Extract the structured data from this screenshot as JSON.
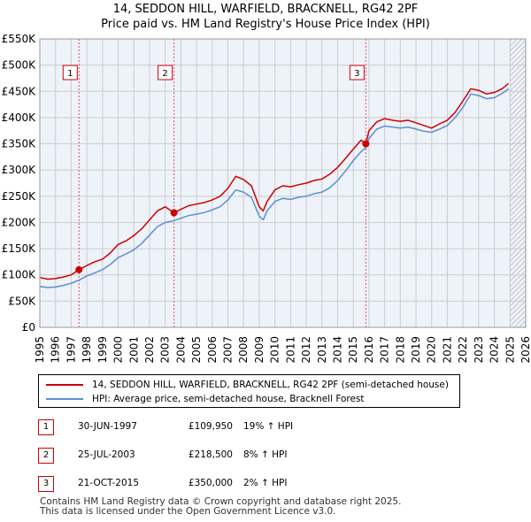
{
  "title_line1": "14, SEDDON HILL, WARFIELD, BRACKNELL, RG42 2PF",
  "title_line2": "Price paid vs. HM Land Registry's House Price Index (HPI)",
  "legend": {
    "property_label": "14, SEDDON HILL, WARFIELD, BRACKNELL, RG42 2PF (semi-detached house)",
    "hpi_label": "HPI: Average price, semi-detached house, Bracknell Forest"
  },
  "sales": [
    {
      "num": "1",
      "date": "30-JUN-1997",
      "price": "£109,950",
      "delta": "19% ↑ HPI"
    },
    {
      "num": "2",
      "date": "25-JUL-2003",
      "price": "£218,500",
      "delta": "8% ↑ HPI"
    },
    {
      "num": "3",
      "date": "21-OCT-2015",
      "price": "£350,000",
      "delta": "2% ↑ HPI"
    }
  ],
  "footer_line1": "Contains HM Land Registry data © Crown copyright and database right 2025.",
  "footer_line2": "This data is licensed under the Open Government Licence v3.0.",
  "colors": {
    "property": "#cc0000",
    "hpi": "#5b8fd0",
    "grid": "#cccccc",
    "plot_bg": "#eef2f9",
    "hatch": "#999999"
  },
  "chart_data": {
    "type": "line",
    "title": "14, SEDDON HILL, WARFIELD, BRACKNELL, RG42 2PF",
    "subtitle": "Price paid vs. HM Land Registry's House Price Index (HPI)",
    "xlabel": "",
    "ylabel": "",
    "xlim": [
      1995,
      2026
    ],
    "ylim": [
      0,
      550000
    ],
    "x_ticks": [
      1995,
      1996,
      1997,
      1998,
      1999,
      2000,
      2001,
      2002,
      2003,
      2004,
      2005,
      2006,
      2007,
      2008,
      2009,
      2010,
      2011,
      2012,
      2013,
      2014,
      2015,
      2016,
      2017,
      2018,
      2019,
      2020,
      2021,
      2022,
      2023,
      2024,
      2025,
      2026
    ],
    "y_ticks": [
      0,
      50000,
      100000,
      150000,
      200000,
      250000,
      300000,
      350000,
      400000,
      450000,
      500000,
      550000
    ],
    "y_tick_labels": [
      "£0",
      "£50K",
      "£100K",
      "£150K",
      "£200K",
      "£250K",
      "£300K",
      "£350K",
      "£400K",
      "£450K",
      "£500K",
      "£550K"
    ],
    "grid": true,
    "future_shading_from": 2025.0,
    "series": [
      {
        "name": "14, SEDDON HILL, WARFIELD, BRACKNELL, RG42 2PF (semi-detached house)",
        "color": "#cc0000",
        "x": [
          1995.0,
          1995.5,
          1996.0,
          1996.5,
          1997.0,
          1997.5,
          1998.0,
          1998.5,
          1999.0,
          1999.5,
          2000.0,
          2000.5,
          2001.0,
          2001.5,
          2002.0,
          2002.5,
          2003.0,
          2003.56,
          2004.0,
          2004.5,
          2005.0,
          2005.5,
          2006.0,
          2006.5,
          2007.0,
          2007.5,
          2008.0,
          2008.5,
          2009.0,
          2009.25,
          2009.5,
          2010.0,
          2010.5,
          2011.0,
          2011.5,
          2012.0,
          2012.5,
          2013.0,
          2013.5,
          2014.0,
          2014.5,
          2015.0,
          2015.5,
          2015.8,
          2016.0,
          2016.5,
          2017.0,
          2017.5,
          2018.0,
          2018.5,
          2019.0,
          2019.5,
          2020.0,
          2020.5,
          2021.0,
          2021.5,
          2022.0,
          2022.5,
          2023.0,
          2023.5,
          2024.0,
          2024.5,
          2024.9
        ],
        "values": [
          95000,
          92000,
          93000,
          96000,
          100000,
          109950,
          118000,
          125000,
          130000,
          142000,
          158000,
          165000,
          175000,
          188000,
          205000,
          222000,
          230000,
          218500,
          225000,
          232000,
          235000,
          238000,
          243000,
          250000,
          265000,
          288000,
          282000,
          270000,
          230000,
          222000,
          240000,
          262000,
          270000,
          268000,
          272000,
          275000,
          280000,
          283000,
          292000,
          305000,
          322000,
          340000,
          357000,
          350000,
          375000,
          392000,
          398000,
          395000,
          393000,
          395000,
          390000,
          385000,
          380000,
          388000,
          395000,
          410000,
          432000,
          455000,
          452000,
          445000,
          448000,
          455000,
          465000
        ]
      },
      {
        "name": "HPI: Average price, semi-detached house, Bracknell Forest",
        "color": "#5b8fd0",
        "x": [
          1995.0,
          1995.5,
          1996.0,
          1996.5,
          1997.0,
          1997.5,
          1998.0,
          1998.5,
          1999.0,
          1999.5,
          2000.0,
          2000.5,
          2001.0,
          2001.5,
          2002.0,
          2002.5,
          2003.0,
          2003.5,
          2004.0,
          2004.5,
          2005.0,
          2005.5,
          2006.0,
          2006.5,
          2007.0,
          2007.5,
          2008.0,
          2008.5,
          2009.0,
          2009.25,
          2009.5,
          2010.0,
          2010.5,
          2011.0,
          2011.5,
          2012.0,
          2012.5,
          2013.0,
          2013.5,
          2014.0,
          2014.5,
          2015.0,
          2015.5,
          2015.8,
          2016.0,
          2016.5,
          2017.0,
          2017.5,
          2018.0,
          2018.5,
          2019.0,
          2019.5,
          2020.0,
          2020.5,
          2021.0,
          2021.5,
          2022.0,
          2022.5,
          2023.0,
          2023.5,
          2024.0,
          2024.5,
          2024.9
        ],
        "values": [
          78000,
          76000,
          77000,
          80000,
          84000,
          90000,
          98000,
          104000,
          110000,
          120000,
          133000,
          140000,
          148000,
          160000,
          176000,
          192000,
          200000,
          203000,
          208000,
          213000,
          216000,
          219000,
          224000,
          230000,
          243000,
          262000,
          258000,
          248000,
          212000,
          205000,
          222000,
          240000,
          246000,
          244000,
          248000,
          250000,
          255000,
          258000,
          266000,
          280000,
          298000,
          318000,
          335000,
          343000,
          360000,
          378000,
          384000,
          382000,
          380000,
          382000,
          378000,
          374000,
          372000,
          378000,
          385000,
          400000,
          420000,
          445000,
          442000,
          436000,
          438000,
          446000,
          455000
        ]
      }
    ],
    "sale_markers": [
      {
        "label": "1",
        "x": 1997.5,
        "value": 109950
      },
      {
        "label": "2",
        "x": 2003.56,
        "value": 218500
      },
      {
        "label": "3",
        "x": 2015.8,
        "value": 350000
      }
    ]
  }
}
